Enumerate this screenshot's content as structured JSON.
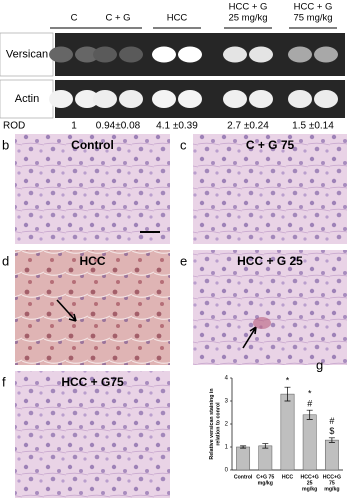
{
  "panel_a": {
    "label": "a",
    "lanes": [
      [
        "C"
      ],
      [
        "C + G"
      ],
      [
        "HCC"
      ],
      [
        "HCC + G",
        "25 mg/kg"
      ],
      [
        "HCC + G",
        "75 mg/kg"
      ]
    ],
    "rows": [
      "Versican",
      "Actin"
    ],
    "rod_label": "ROD",
    "rod_values": [
      "1",
      "0.94±0.08",
      "4.1 ±0.39",
      "2.7 ±0.24",
      "1.5 ±0.14"
    ]
  },
  "panels": [
    {
      "letter": "b",
      "title": "Control"
    },
    {
      "letter": "c",
      "title": "C + G 75"
    },
    {
      "letter": "d",
      "title": "HCC"
    },
    {
      "letter": "e",
      "title": "HCC + G 25"
    },
    {
      "letter": "f",
      "title": "HCC + G75"
    }
  ],
  "chart_data": {
    "type": "bar",
    "label": "g",
    "ylabel": [
      "Relative versican staining in",
      "relation to conrol"
    ],
    "categories": [
      [
        "Control"
      ],
      [
        "C+G 75",
        "mg/kg"
      ],
      [
        "HCC"
      ],
      [
        "HCC+G",
        "25",
        "mg/kg"
      ],
      [
        "HCC+G",
        "75",
        "mg/kg"
      ]
    ],
    "values": [
      1,
      1.05,
      3.3,
      2.4,
      1.3
    ],
    "errors": [
      0.05,
      0.1,
      0.3,
      0.2,
      0.1
    ],
    "significance": [
      null,
      null,
      [
        "*"
      ],
      [
        "*",
        "#"
      ],
      [
        "#",
        "$"
      ]
    ],
    "color": "#bfbfbf",
    "ylim": [
      0,
      4
    ],
    "yticks": [
      0,
      1,
      2,
      3,
      4
    ]
  }
}
